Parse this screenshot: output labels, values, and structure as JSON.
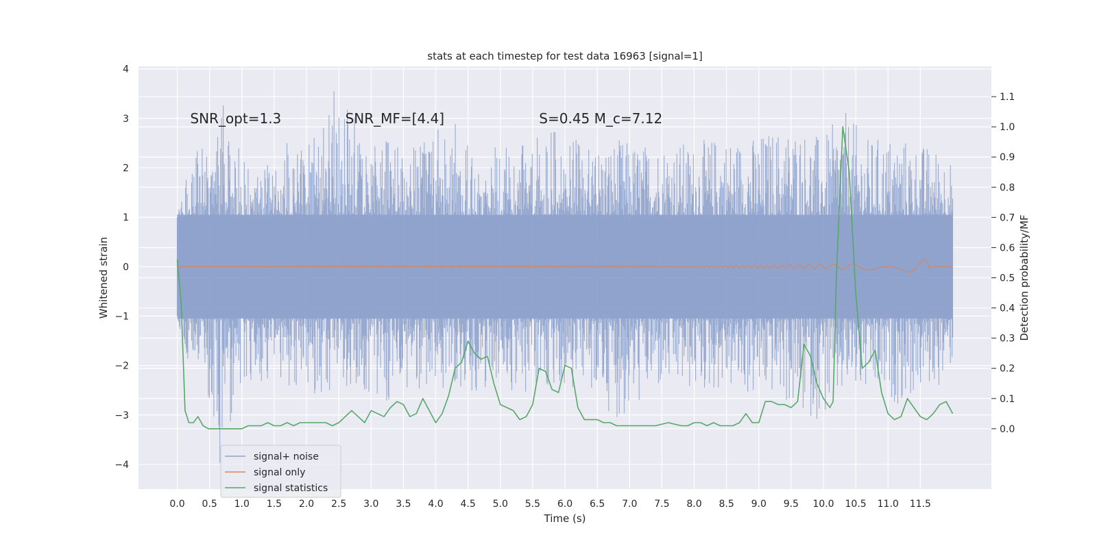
{
  "chart_data": {
    "type": "line",
    "title": "stats at each timestep for test data 16963 [signal=1]",
    "xlabel": "Time (s)",
    "ylabel": "Whitened strain",
    "ylabel_right": "Detection probability/MF",
    "xlim": [
      -0.6,
      12.6
    ],
    "ylim": [
      -4.5,
      4.05
    ],
    "ylim_right": [
      -0.2,
      1.2
    ],
    "x_ticks": [
      0.0,
      0.5,
      1.0,
      1.5,
      2.0,
      2.5,
      3.0,
      3.5,
      4.0,
      4.5,
      5.0,
      5.5,
      6.0,
      6.5,
      7.0,
      7.5,
      8.0,
      8.5,
      9.0,
      9.5,
      10.0,
      10.5,
      11.0,
      11.5
    ],
    "x_tick_labels": [
      "0.0",
      "0.5",
      "1.0",
      "1.5",
      "2.0",
      "2.5",
      "3.0",
      "3.5",
      "4.0",
      "4.5",
      "5.0",
      "5.5",
      "6.0",
      "6.5",
      "7.0",
      "7.5",
      "8.0",
      "8.5",
      "9.0",
      "9.5",
      "10.0",
      "10.5",
      "11.0",
      "11.5"
    ],
    "y_ticks": [
      -4,
      -3,
      -2,
      -1,
      0,
      1,
      2,
      3,
      4
    ],
    "y_tick_labels": [
      "−4",
      "−3",
      "−2",
      "−1",
      "0",
      "1",
      "2",
      "3",
      "4"
    ],
    "y_ticks_right": [
      0.0,
      0.1,
      0.2,
      0.3,
      0.4,
      0.5,
      0.6,
      0.7,
      0.8,
      0.9,
      1.0,
      1.1
    ],
    "y_tick_labels_right": [
      "0.0",
      "0.1",
      "0.2",
      "0.3",
      "0.4",
      "0.5",
      "0.6",
      "0.7",
      "0.8",
      "0.9",
      "1.0",
      "1.1"
    ],
    "annotations": [
      {
        "text": "SNR_opt=1.3",
        "x": 0.2,
        "y": 2.9
      },
      {
        "text": "SNR_MF=[4.4]",
        "x": 2.6,
        "y": 2.9
      },
      {
        "text": "S=0.45   M_c=7.12",
        "x": 5.6,
        "y": 2.9
      }
    ],
    "legend": {
      "position": "lower-left",
      "entries": [
        "signal+ noise",
        "signal only",
        "signal statistics"
      ]
    },
    "grid": true,
    "series": [
      {
        "name": "signal+ noise",
        "color": "#8fa3cc",
        "x_range": [
          0.0,
          12.0
        ],
        "upper_envelope_x": [
          0.0,
          0.1,
          0.2,
          0.35,
          0.55,
          0.75,
          1.0,
          1.3,
          1.6,
          2.0,
          2.3,
          2.55,
          2.9,
          3.2,
          3.5,
          3.9,
          4.2,
          4.5,
          4.9,
          5.3,
          5.7,
          6.0,
          6.4,
          6.8,
          7.2,
          7.6,
          8.0,
          8.4,
          8.8,
          9.2,
          9.6,
          10.0,
          10.3,
          10.7,
          11.1,
          11.5,
          11.8,
          12.0
        ],
        "upper_envelope_y": [
          1.0,
          1.7,
          1.9,
          2.6,
          2.1,
          3.6,
          2.3,
          2.2,
          2.5,
          2.6,
          3.5,
          3.7,
          2.5,
          2.7,
          2.4,
          2.6,
          3.0,
          2.7,
          2.5,
          2.4,
          3.0,
          2.6,
          2.5,
          2.6,
          2.5,
          2.6,
          2.5,
          2.7,
          2.6,
          2.8,
          2.9,
          2.6,
          3.2,
          2.6,
          2.7,
          2.5,
          2.4,
          2.2
        ],
        "lower_envelope_x": [
          0.0,
          0.1,
          0.25,
          0.5,
          0.65,
          0.85,
          1.1,
          1.6,
          2.0,
          2.3,
          2.8,
          3.1,
          3.6,
          4.0,
          4.3,
          4.7,
          5.1,
          5.6,
          6.0,
          6.4,
          6.9,
          7.3,
          7.7,
          8.1,
          8.5,
          8.9,
          9.3,
          9.6,
          10.0,
          10.4,
          10.8,
          11.2,
          11.6,
          11.9,
          12.0
        ],
        "lower_envelope_y": [
          -1.0,
          -1.9,
          -2.4,
          -2.8,
          -4.1,
          -3.0,
          -2.6,
          -2.4,
          -2.5,
          -2.7,
          -2.5,
          -2.9,
          -2.6,
          -2.7,
          -2.4,
          -2.6,
          -2.5,
          -2.6,
          -2.5,
          -2.6,
          -3.2,
          -2.6,
          -2.5,
          -2.6,
          -2.5,
          -2.7,
          -2.6,
          -3.1,
          -3.1,
          -2.6,
          -2.7,
          -2.8,
          -2.5,
          -2.4,
          -1.9
        ]
      },
      {
        "name": "signal only",
        "color": "#dd8452",
        "x": [
          0.0,
          8.0,
          9.0,
          10.0,
          10.5,
          11.0,
          11.4,
          11.55,
          11.65,
          11.66,
          12.0
        ],
        "amplitude": [
          0.01,
          0.02,
          0.03,
          0.04,
          0.06,
          0.08,
          0.12,
          0.15,
          0.16,
          0.0,
          0.0
        ]
      },
      {
        "name": "signal statistics",
        "color": "#55a868",
        "axis": "right",
        "x": [
          0.0,
          0.06,
          0.12,
          0.18,
          0.25,
          0.32,
          0.4,
          0.48,
          0.55,
          0.65,
          0.75,
          0.85,
          1.0,
          1.1,
          1.2,
          1.3,
          1.4,
          1.5,
          1.6,
          1.7,
          1.8,
          1.9,
          2.0,
          2.1,
          2.2,
          2.3,
          2.4,
          2.5,
          2.6,
          2.7,
          2.8,
          2.9,
          3.0,
          3.1,
          3.2,
          3.3,
          3.4,
          3.5,
          3.6,
          3.7,
          3.8,
          3.9,
          4.0,
          4.1,
          4.2,
          4.3,
          4.4,
          4.5,
          4.6,
          4.7,
          4.8,
          4.9,
          5.0,
          5.1,
          5.2,
          5.3,
          5.4,
          5.5,
          5.6,
          5.7,
          5.8,
          5.9,
          6.0,
          6.1,
          6.2,
          6.3,
          6.4,
          6.5,
          6.6,
          6.7,
          6.8,
          6.9,
          7.0,
          7.2,
          7.4,
          7.6,
          7.8,
          7.9,
          8.0,
          8.1,
          8.2,
          8.3,
          8.4,
          8.5,
          8.6,
          8.7,
          8.8,
          8.9,
          9.0,
          9.1,
          9.2,
          9.3,
          9.4,
          9.5,
          9.6,
          9.7,
          9.8,
          9.9,
          10.0,
          10.1,
          10.15,
          10.2,
          10.3,
          10.4,
          10.5,
          10.6,
          10.7,
          10.8,
          10.9,
          11.0,
          11.1,
          11.2,
          11.3,
          11.4,
          11.5,
          11.6,
          11.7,
          11.8,
          11.9,
          12.0
        ],
        "y": [
          0.56,
          0.42,
          0.06,
          0.02,
          0.02,
          0.04,
          0.01,
          0.0,
          0.0,
          0.0,
          0.0,
          0.0,
          0.0,
          0.01,
          0.01,
          0.01,
          0.02,
          0.01,
          0.01,
          0.02,
          0.01,
          0.02,
          0.02,
          0.02,
          0.02,
          0.02,
          0.01,
          0.02,
          0.04,
          0.06,
          0.04,
          0.02,
          0.06,
          0.05,
          0.04,
          0.07,
          0.09,
          0.08,
          0.04,
          0.05,
          0.1,
          0.06,
          0.02,
          0.05,
          0.11,
          0.2,
          0.22,
          0.29,
          0.25,
          0.23,
          0.24,
          0.15,
          0.08,
          0.07,
          0.06,
          0.03,
          0.04,
          0.08,
          0.2,
          0.19,
          0.13,
          0.12,
          0.21,
          0.2,
          0.07,
          0.03,
          0.03,
          0.03,
          0.02,
          0.02,
          0.01,
          0.01,
          0.01,
          0.01,
          0.01,
          0.02,
          0.01,
          0.01,
          0.02,
          0.02,
          0.01,
          0.02,
          0.01,
          0.01,
          0.01,
          0.02,
          0.05,
          0.02,
          0.02,
          0.09,
          0.09,
          0.08,
          0.08,
          0.07,
          0.09,
          0.28,
          0.24,
          0.15,
          0.1,
          0.07,
          0.09,
          0.5,
          1.0,
          0.85,
          0.45,
          0.2,
          0.22,
          0.26,
          0.12,
          0.05,
          0.03,
          0.04,
          0.1,
          0.07,
          0.04,
          0.03,
          0.05,
          0.08,
          0.09,
          0.05
        ]
      }
    ]
  }
}
